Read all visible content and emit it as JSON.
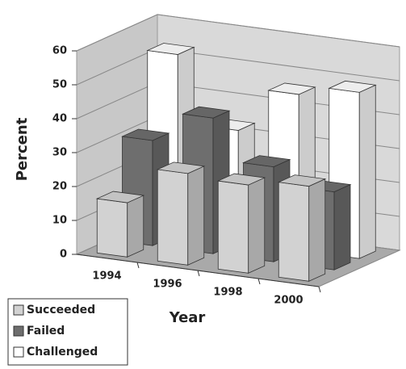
{
  "chart_data": {
    "type": "bar",
    "x_label": "Year",
    "y_label": "Percent",
    "categories": [
      "1994",
      "1996",
      "1998",
      "2000"
    ],
    "series": [
      {
        "name": "Succeeded",
        "color": "#d2d2d2",
        "values": [
          16,
          27,
          26,
          28
        ]
      },
      {
        "name": "Failed",
        "color": "#6e6e6e",
        "values": [
          31,
          40,
          28,
          23
        ]
      },
      {
        "name": "Challenged",
        "color": "#ffffff",
        "values": [
          53,
          33,
          46,
          49
        ]
      }
    ],
    "ylim": [
      0,
      60
    ],
    "yticks": [
      0,
      10,
      20,
      30,
      40,
      50,
      60
    ],
    "grid": true,
    "legend": "bottom-left"
  }
}
